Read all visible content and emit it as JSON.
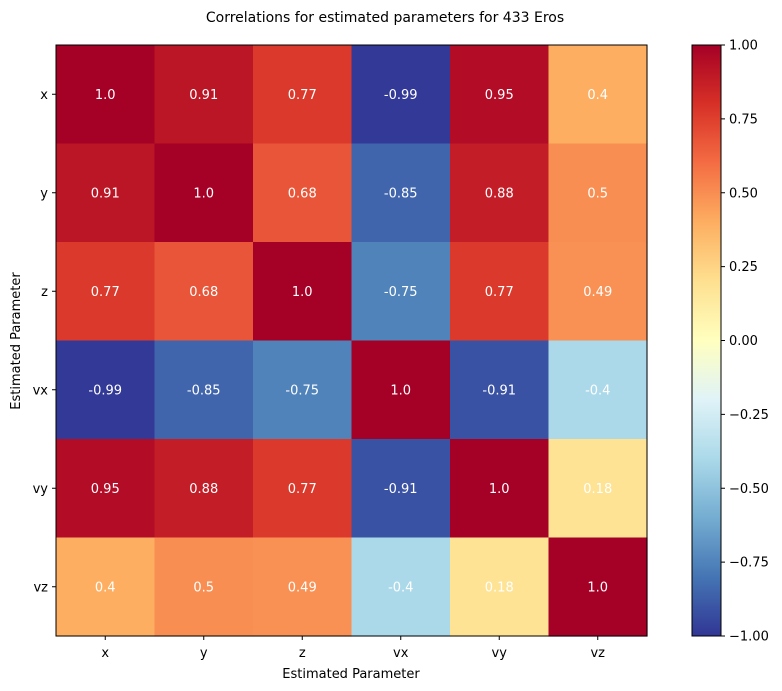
{
  "chart_data": {
    "type": "heatmap",
    "title": "Correlations for estimated parameters for 433 Eros",
    "xlabel": "Estimated Parameter",
    "ylabel": "Estimated Parameter",
    "x_categories": [
      "x",
      "y",
      "z",
      "vx",
      "vy",
      "vz"
    ],
    "y_categories": [
      "x",
      "y",
      "z",
      "vx",
      "vy",
      "vz"
    ],
    "values": [
      [
        1.0,
        0.91,
        0.77,
        -0.99,
        0.95,
        0.4
      ],
      [
        0.91,
        1.0,
        0.68,
        -0.85,
        0.88,
        0.5
      ],
      [
        0.77,
        0.68,
        1.0,
        -0.75,
        0.77,
        0.49
      ],
      [
        -0.99,
        -0.85,
        -0.75,
        1.0,
        -0.91,
        -0.4
      ],
      [
        0.95,
        0.88,
        0.77,
        -0.91,
        1.0,
        0.18
      ],
      [
        0.4,
        0.5,
        0.49,
        -0.4,
        0.18,
        1.0
      ]
    ],
    "value_labels": [
      [
        "1.0",
        "0.91",
        "0.77",
        "-0.99",
        "0.95",
        "0.4"
      ],
      [
        "0.91",
        "1.0",
        "0.68",
        "-0.85",
        "0.88",
        "0.5"
      ],
      [
        "0.77",
        "0.68",
        "1.0",
        "-0.75",
        "0.77",
        "0.49"
      ],
      [
        "-0.99",
        "-0.85",
        "-0.75",
        "1.0",
        "-0.91",
        "-0.4"
      ],
      [
        "0.95",
        "0.88",
        "0.77",
        "-0.91",
        "1.0",
        "0.18"
      ],
      [
        "0.4",
        "0.5",
        "0.49",
        "-0.4",
        "0.18",
        "1.0"
      ]
    ],
    "colormap": "RdYlBu_r",
    "colorbar": {
      "range": [
        -1.0,
        1.0
      ],
      "ticks": [
        1.0,
        0.75,
        0.5,
        0.25,
        0.0,
        -0.25,
        -0.5,
        -0.75,
        -1.0
      ],
      "tick_labels": [
        "1.00",
        "0.75",
        "0.50",
        "0.25",
        "0.00",
        "−0.25",
        "−0.50",
        "−0.75",
        "−1.00"
      ]
    },
    "annotation_color": "#ffffff"
  }
}
